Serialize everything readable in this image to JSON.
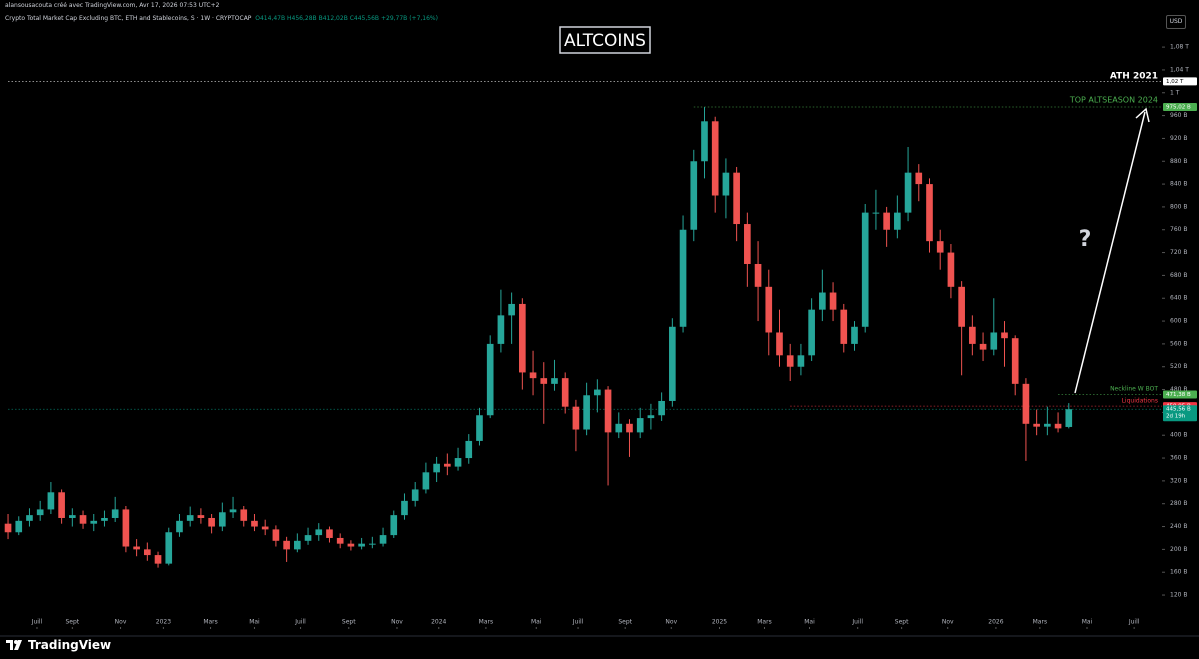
{
  "header": {
    "credit": "alansousacouta créé avec TradingView.com, Avr 17, 2026 07:53 UTC+2",
    "symbol": "Crypto Total Market Cap Excluding BTC, ETH and Stablecoins, S · 1W · CRYPTOCAP",
    "open": "O414,47B",
    "high": "H456,28B",
    "low": "B412,02B",
    "close": "C445,56B",
    "change": "+29,77B (+7,16%)",
    "currency": "USD",
    "brand": "TradingView"
  },
  "chart_data": {
    "type": "candlestick",
    "title": "ALTCOINS",
    "up_color": "#26a69a",
    "down_color": "#ef5350",
    "grid": false,
    "ylim": [
      64,
      1145
    ],
    "yticks": [
      {
        "value": 120,
        "label": "120 B"
      },
      {
        "value": 160,
        "label": "160 B"
      },
      {
        "value": 200,
        "label": "200 B"
      },
      {
        "value": 240,
        "label": "240 B"
      },
      {
        "value": 280,
        "label": "280 B"
      },
      {
        "value": 320,
        "label": "320 B"
      },
      {
        "value": 360,
        "label": "360 B"
      },
      {
        "value": 400,
        "label": "400 B"
      },
      {
        "value": 440,
        "label": "440 B"
      },
      {
        "value": 480,
        "label": "480 B"
      },
      {
        "value": 520,
        "label": "520 B"
      },
      {
        "value": 560,
        "label": "560 B"
      },
      {
        "value": 600,
        "label": "600 B"
      },
      {
        "value": 640,
        "label": "640 B"
      },
      {
        "value": 680,
        "label": "680 B"
      },
      {
        "value": 720,
        "label": "720 B"
      },
      {
        "value": 760,
        "label": "760 B"
      },
      {
        "value": 800,
        "label": "800 B"
      },
      {
        "value": 840,
        "label": "840 B"
      },
      {
        "value": 880,
        "label": "880 B"
      },
      {
        "value": 920,
        "label": "920 B"
      },
      {
        "value": 960,
        "label": "960 B"
      },
      {
        "value": 1000,
        "label": "1 T"
      },
      {
        "value": 1040,
        "label": "1,04 T"
      },
      {
        "value": 1080,
        "label": "1,08 T"
      }
    ],
    "xlim": [
      -0.75,
      107.7
    ],
    "xticks": [
      {
        "value": 2.7,
        "label": "Juill"
      },
      {
        "value": 6.0,
        "label": "Sept"
      },
      {
        "value": 10.5,
        "label": "Nov"
      },
      {
        "value": 14.5,
        "label": "2023"
      },
      {
        "value": 18.9,
        "label": "Mars"
      },
      {
        "value": 23.0,
        "label": "Mai"
      },
      {
        "value": 27.3,
        "label": "Juill"
      },
      {
        "value": 31.8,
        "label": "Sept"
      },
      {
        "value": 36.3,
        "label": "Nov"
      },
      {
        "value": 40.2,
        "label": "2024"
      },
      {
        "value": 44.6,
        "label": "Mars"
      },
      {
        "value": 49.3,
        "label": "Mai"
      },
      {
        "value": 53.2,
        "label": "Juill"
      },
      {
        "value": 57.6,
        "label": "Sept"
      },
      {
        "value": 61.9,
        "label": "Nov"
      },
      {
        "value": 66.4,
        "label": "2025"
      },
      {
        "value": 70.6,
        "label": "Mars"
      },
      {
        "value": 74.8,
        "label": "Mai"
      },
      {
        "value": 79.3,
        "label": "Juill"
      },
      {
        "value": 83.4,
        "label": "Sept"
      },
      {
        "value": 87.7,
        "label": "Nov"
      },
      {
        "value": 92.2,
        "label": "2026"
      },
      {
        "value": 96.3,
        "label": "Mars"
      },
      {
        "value": 100.7,
        "label": "Mai"
      },
      {
        "value": 105.1,
        "label": "Juill"
      }
    ],
    "ohlc": [
      [
        245,
        262,
        218,
        230
      ],
      [
        230,
        258,
        225,
        250
      ],
      [
        250,
        272,
        240,
        260
      ],
      [
        260,
        285,
        250,
        270
      ],
      [
        270,
        318,
        262,
        300
      ],
      [
        300,
        305,
        245,
        255
      ],
      [
        255,
        272,
        240,
        260
      ],
      [
        260,
        268,
        236,
        245
      ],
      [
        245,
        262,
        232,
        250
      ],
      [
        250,
        268,
        240,
        255
      ],
      [
        255,
        292,
        248,
        270
      ],
      [
        270,
        276,
        195,
        205
      ],
      [
        205,
        218,
        188,
        200
      ],
      [
        200,
        212,
        180,
        190
      ],
      [
        190,
        196,
        168,
        175
      ],
      [
        175,
        238,
        172,
        230
      ],
      [
        230,
        262,
        222,
        250
      ],
      [
        250,
        275,
        240,
        260
      ],
      [
        260,
        272,
        245,
        255
      ],
      [
        255,
        262,
        228,
        240
      ],
      [
        240,
        282,
        232,
        265
      ],
      [
        265,
        292,
        255,
        270
      ],
      [
        270,
        276,
        240,
        250
      ],
      [
        250,
        262,
        232,
        240
      ],
      [
        240,
        252,
        225,
        235
      ],
      [
        235,
        242,
        205,
        215
      ],
      [
        215,
        222,
        178,
        200
      ],
      [
        200,
        228,
        195,
        215
      ],
      [
        215,
        238,
        208,
        225
      ],
      [
        225,
        246,
        215,
        235
      ],
      [
        235,
        240,
        212,
        220
      ],
      [
        220,
        228,
        202,
        210
      ],
      [
        210,
        216,
        198,
        205
      ],
      [
        205,
        220,
        200,
        210
      ],
      [
        210,
        222,
        202,
        210
      ],
      [
        210,
        238,
        205,
        225
      ],
      [
        225,
        268,
        220,
        260
      ],
      [
        260,
        298,
        252,
        285
      ],
      [
        285,
        318,
        275,
        305
      ],
      [
        305,
        352,
        298,
        335
      ],
      [
        335,
        362,
        318,
        350
      ],
      [
        350,
        368,
        330,
        345
      ],
      [
        345,
        378,
        338,
        360
      ],
      [
        360,
        402,
        350,
        390
      ],
      [
        390,
        448,
        382,
        435
      ],
      [
        435,
        575,
        430,
        560
      ],
      [
        560,
        655,
        545,
        610
      ],
      [
        610,
        650,
        560,
        630
      ],
      [
        630,
        640,
        480,
        510
      ],
      [
        510,
        548,
        470,
        500
      ],
      [
        500,
        528,
        420,
        490
      ],
      [
        490,
        532,
        478,
        500
      ],
      [
        500,
        510,
        438,
        450
      ],
      [
        450,
        462,
        372,
        410
      ],
      [
        410,
        492,
        400,
        470
      ],
      [
        470,
        498,
        440,
        480
      ],
      [
        480,
        486,
        312,
        405
      ],
      [
        405,
        440,
        395,
        420
      ],
      [
        420,
        428,
        362,
        405
      ],
      [
        405,
        448,
        395,
        430
      ],
      [
        430,
        455,
        410,
        435
      ],
      [
        435,
        475,
        425,
        460
      ],
      [
        460,
        605,
        450,
        590
      ],
      [
        590,
        785,
        580,
        760
      ],
      [
        760,
        900,
        740,
        880
      ],
      [
        880,
        975,
        850,
        950
      ],
      [
        950,
        958,
        790,
        820
      ],
      [
        820,
        885,
        780,
        860
      ],
      [
        860,
        870,
        740,
        770
      ],
      [
        770,
        790,
        660,
        700
      ],
      [
        700,
        740,
        600,
        660
      ],
      [
        660,
        690,
        540,
        580
      ],
      [
        580,
        620,
        520,
        540
      ],
      [
        540,
        560,
        495,
        520
      ],
      [
        520,
        560,
        505,
        540
      ],
      [
        540,
        640,
        530,
        620
      ],
      [
        620,
        690,
        600,
        650
      ],
      [
        650,
        668,
        600,
        620
      ],
      [
        620,
        630,
        545,
        560
      ],
      [
        560,
        600,
        548,
        590
      ],
      [
        590,
        805,
        580,
        790
      ],
      [
        790,
        830,
        760,
        790
      ],
      [
        790,
        800,
        730,
        760
      ],
      [
        760,
        820,
        745,
        790
      ],
      [
        790,
        905,
        775,
        860
      ],
      [
        860,
        875,
        810,
        840
      ],
      [
        840,
        850,
        720,
        740
      ],
      [
        740,
        760,
        690,
        720
      ],
      [
        720,
        735,
        640,
        660
      ],
      [
        660,
        670,
        505,
        590
      ],
      [
        590,
        610,
        540,
        560
      ],
      [
        560,
        580,
        530,
        550
      ],
      [
        550,
        640,
        540,
        580
      ],
      [
        580,
        600,
        520,
        570
      ],
      [
        570,
        575,
        470,
        490
      ],
      [
        490,
        500,
        355,
        420
      ],
      [
        420,
        445,
        400,
        415
      ],
      [
        415,
        450,
        400,
        420
      ],
      [
        420,
        440,
        405,
        412
      ],
      [
        414.47,
        456.28,
        412.02,
        445.56
      ]
    ],
    "levels": [
      {
        "value": 1020,
        "label": "1,02 T",
        "color": "#ffffff"
      },
      {
        "value": 975.02,
        "label": "975,02 B",
        "color": "#4caf50"
      },
      {
        "value": 471.38,
        "label": "471,38 B",
        "color": "#4caf50"
      },
      {
        "value": 450.95,
        "label": "450,95 B",
        "color": "#f23645"
      },
      {
        "value": 445.56,
        "label": "445,56 B",
        "sublabel": "2d 19h",
        "color": "#089981"
      }
    ],
    "annotations": [
      {
        "text": "ATH 2021",
        "color": "#ffffff"
      },
      {
        "text": "TOP ALTSEASON 2024",
        "color": "#4caf50"
      },
      {
        "text": "?",
        "color": "#d1d4dc"
      },
      {
        "text": "Neckline W BOT",
        "color": "#4caf50"
      },
      {
        "text": "Liquidations",
        "color": "#f23645"
      }
    ]
  }
}
